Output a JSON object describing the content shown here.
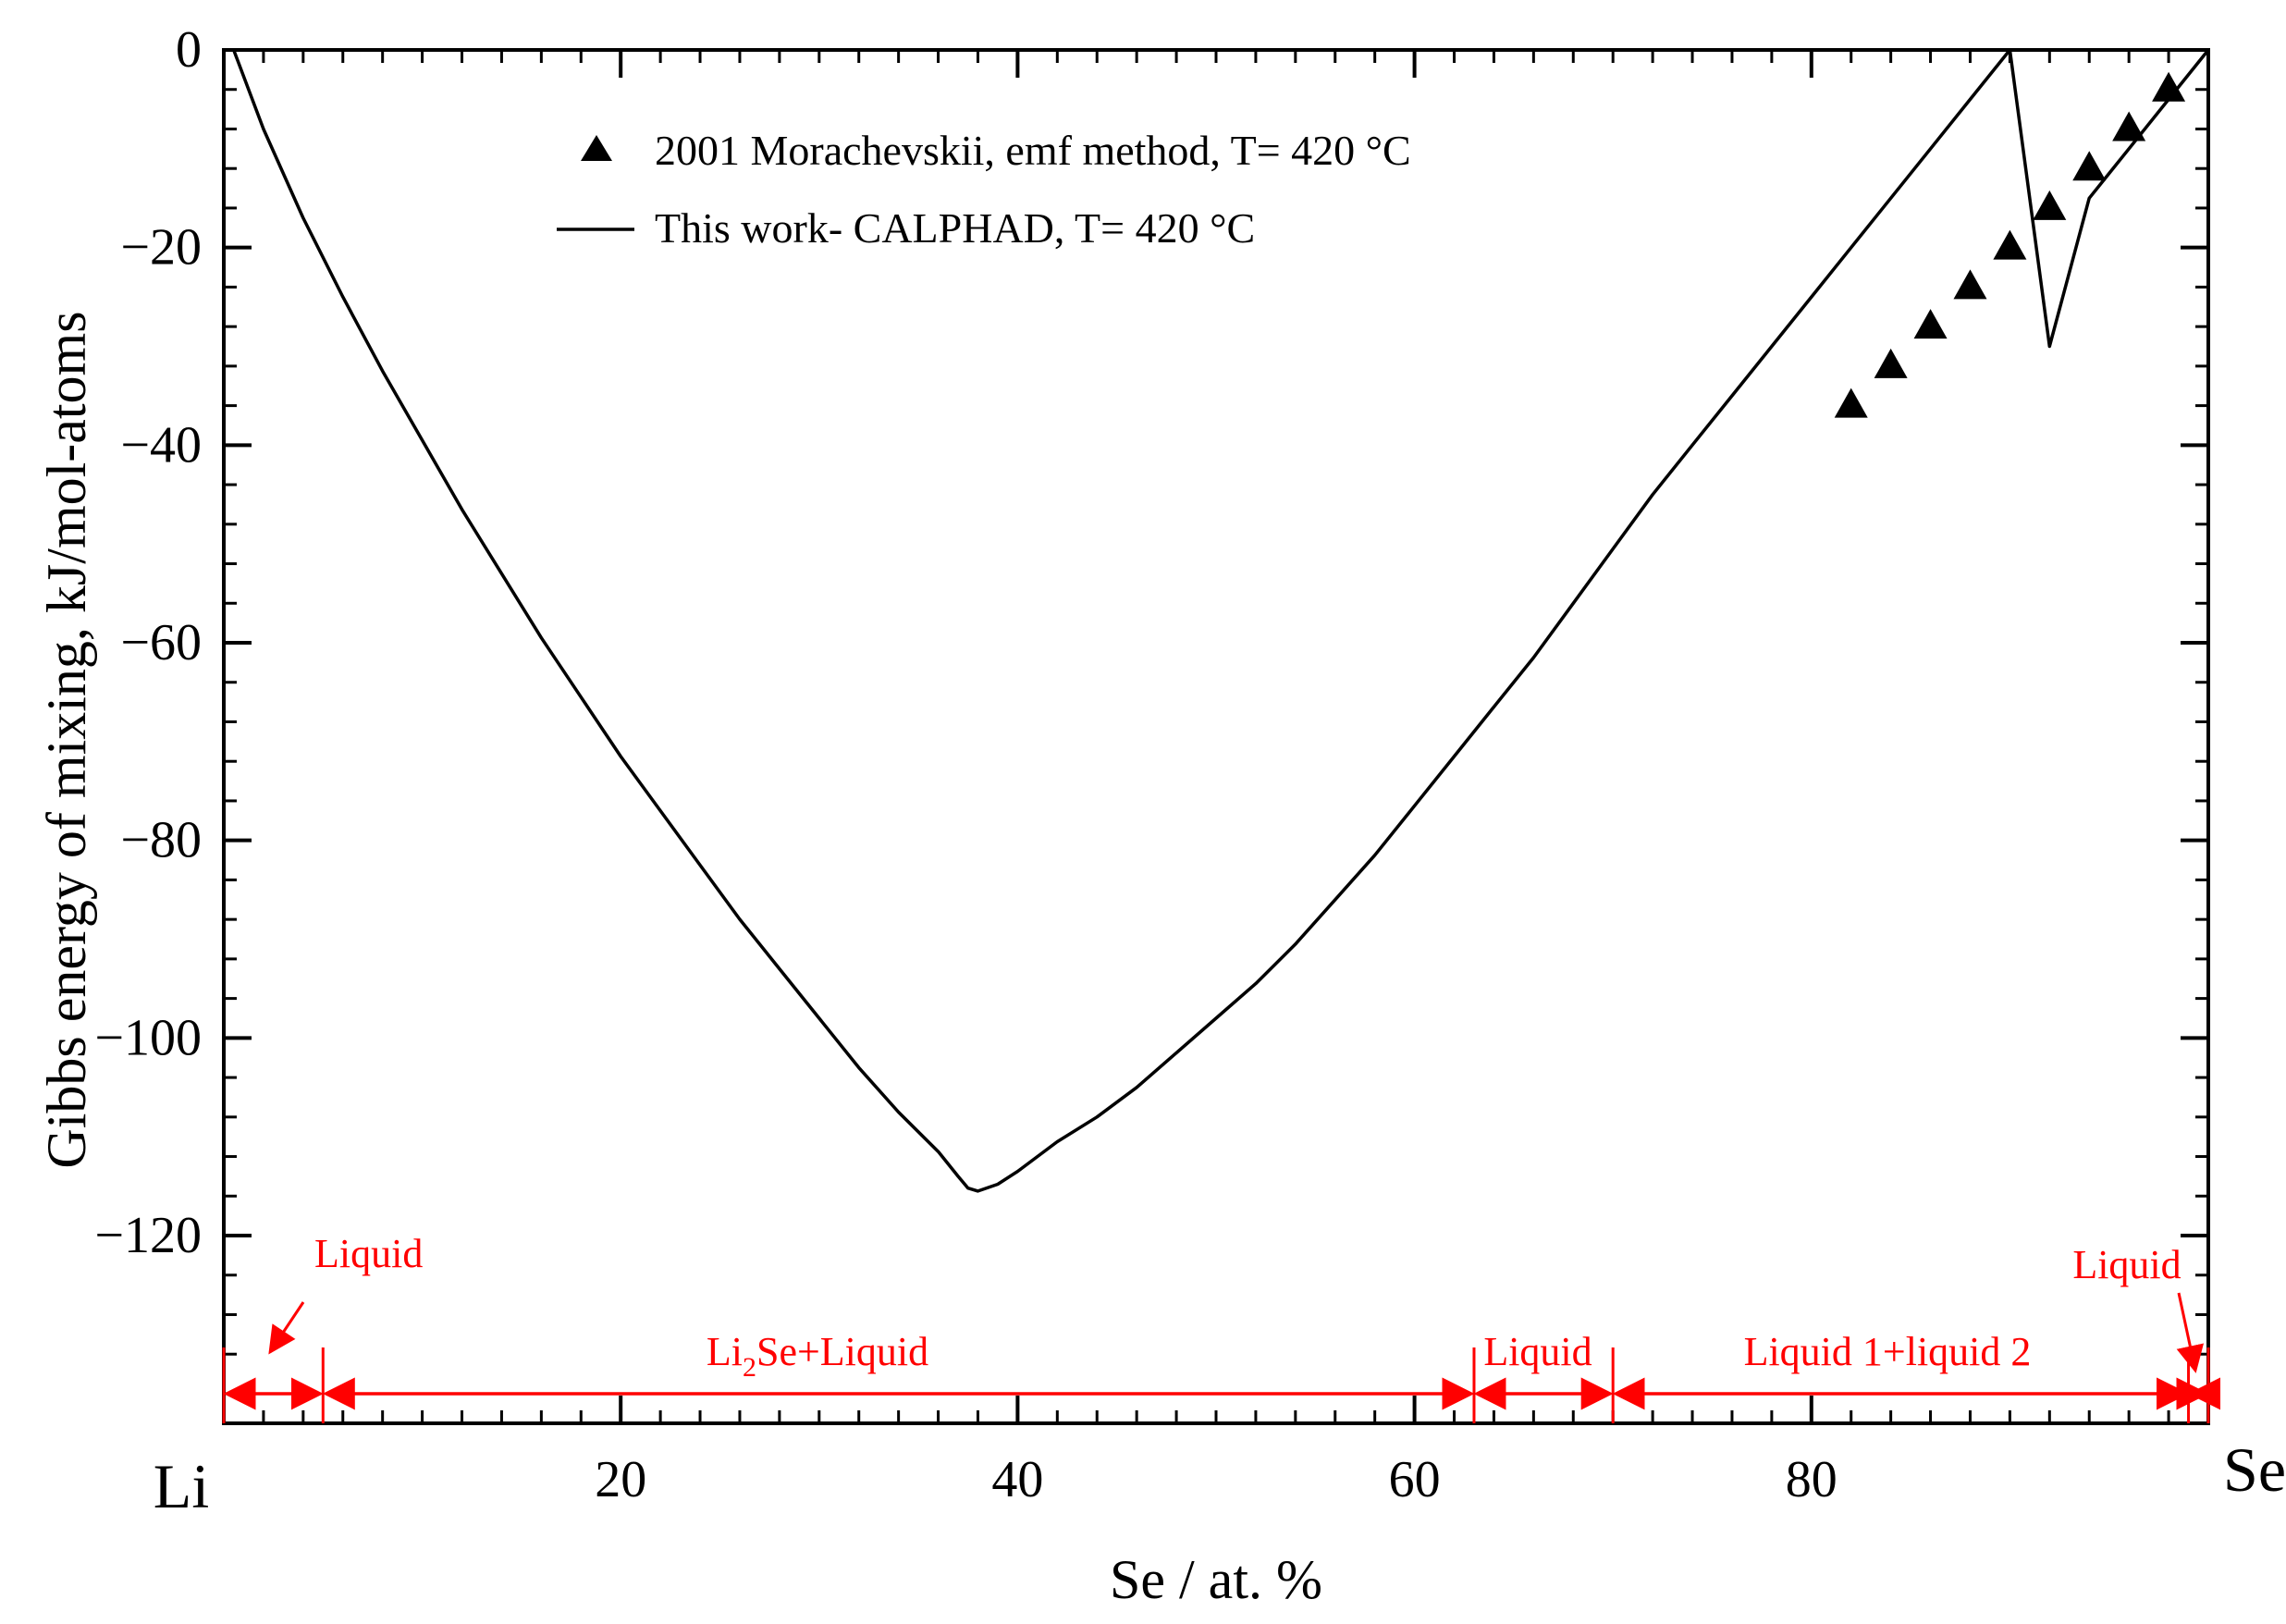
{
  "chart_data": {
    "type": "line",
    "xlabel": "Se / at. %",
    "ylabel": "Gibbs energy of mixing, kJ/mol-atoms",
    "xlim": [
      0,
      100
    ],
    "ylim": [
      -139,
      0
    ],
    "x_ticks": [
      {
        "value": 0,
        "label": "Li"
      },
      {
        "value": 20,
        "label": "20"
      },
      {
        "value": 40,
        "label": "40"
      },
      {
        "value": 60,
        "label": "60"
      },
      {
        "value": 80,
        "label": "80"
      },
      {
        "value": 100,
        "label": "Se"
      }
    ],
    "y_ticks": [
      {
        "value": 0,
        "label": "0"
      },
      {
        "value": -20,
        "label": "−20"
      },
      {
        "value": -40,
        "label": "−40"
      },
      {
        "value": -60,
        "label": "−60"
      },
      {
        "value": -80,
        "label": "−80"
      },
      {
        "value": -100,
        "label": "−100"
      },
      {
        "value": -120,
        "label": "−120"
      }
    ],
    "series": [
      {
        "name": "This work- CALPHAD, T= 420 °C",
        "style": "line",
        "color": "#000000",
        "x": [
          0.5,
          2,
          4,
          6,
          8,
          10,
          12,
          14,
          16,
          18,
          20,
          22,
          24,
          26,
          28,
          30,
          32,
          34,
          36,
          37,
          37.5,
          38,
          39,
          40,
          42,
          44,
          46,
          48,
          50,
          52,
          54,
          56,
          58,
          60,
          62,
          64,
          66,
          68,
          70,
          72,
          74,
          76,
          78,
          80,
          82,
          84,
          86,
          88,
          90,
          92,
          94,
          96,
          98,
          100
        ],
        "y": [
          0,
          -8,
          -17,
          -25,
          -32.5,
          -39.5,
          -46.5,
          -53,
          -59.5,
          -65.5,
          -71.5,
          -77,
          -82.5,
          -88,
          -93,
          -98,
          -103,
          -107.5,
          -111.5,
          -114,
          -115.2,
          -115.5,
          -114.8,
          -113.5,
          -110.5,
          -108,
          -105,
          -101.5,
          -98,
          -94.5,
          -90.5,
          -86,
          -81.5,
          -76.5,
          -71.5,
          -66.5,
          -61.5,
          -56,
          -50.5,
          -45,
          -40,
          -35,
          -30,
          -25,
          -20,
          -15,
          -10,
          -5,
          0,
          -30,
          -15,
          -10,
          -5,
          0
        ]
      },
      {
        "name": "2001 Morachevskii, emf method, T= 420 °C",
        "style": "marker-triangle",
        "color": "#000000",
        "x": [
          82,
          84,
          86,
          88,
          90,
          92,
          94,
          96,
          98
        ],
        "y": [
          -36,
          -32,
          -28,
          -24,
          -20,
          -16,
          -12,
          -8,
          -4
        ]
      }
    ],
    "legend": {
      "position": "top-left",
      "entries": [
        {
          "label": "2001 Morachevskii, emf method, T= 420 °C",
          "marker": "triangle"
        },
        {
          "label": "This work- CALPHAD, T= 420 °C",
          "marker": "line"
        }
      ]
    },
    "phase_regions": {
      "color": "#ff0000",
      "arrow_y": -136,
      "boundaries": [
        0,
        5,
        63,
        70,
        99,
        100
      ],
      "labels": [
        {
          "text": "Liquid",
          "x_from": 0,
          "x_to": 5
        },
        {
          "text": "Li",
          "sub": "2",
          "rest": "Se+Liquid",
          "x_from": 5,
          "x_to": 63
        },
        {
          "text": "Liquid",
          "x_from": 63,
          "x_to": 70
        },
        {
          "text": "Liquid 1+liquid 2",
          "x_from": 70,
          "x_to": 99
        },
        {
          "text": "Liquid",
          "x_from": 99,
          "x_to": 100
        }
      ]
    }
  }
}
